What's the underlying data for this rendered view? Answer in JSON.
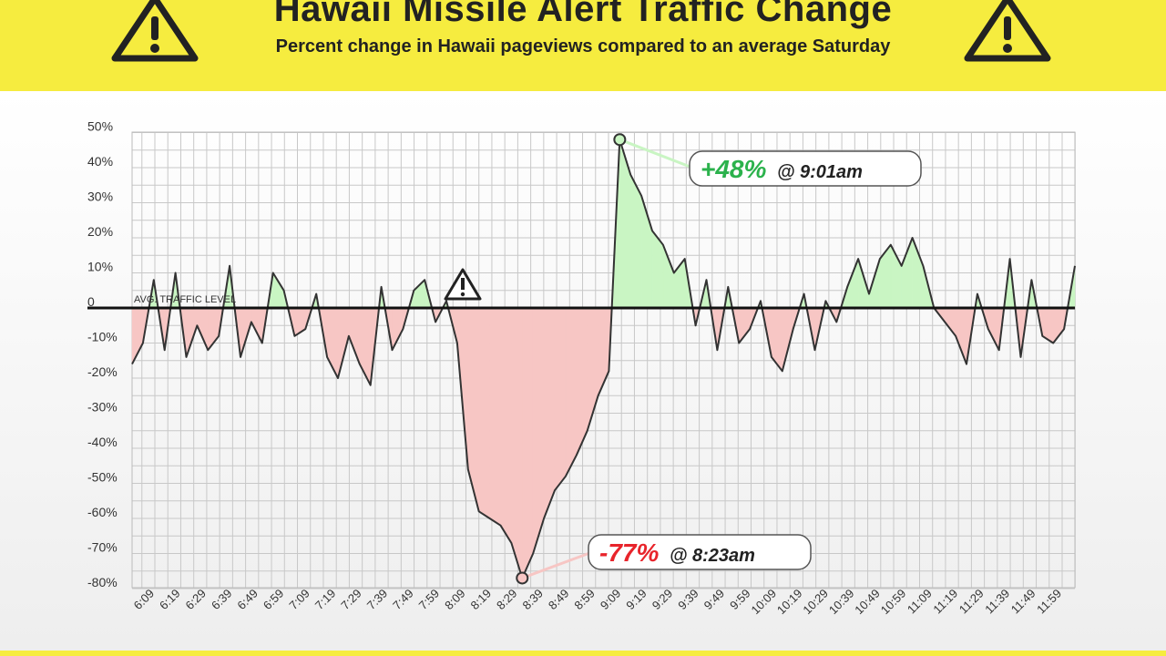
{
  "header": {
    "title": "Hawaii Missile Alert Traffic Change",
    "subtitle": "Percent change in Hawaii pageviews compared to an average Saturday"
  },
  "colors": {
    "header_bg": "#f6ec3f",
    "positive_fill": "#c9f5c3",
    "negative_fill": "#f7c6c4",
    "line": "#333333",
    "positive_text": "#2bb24c",
    "negative_text": "#e8242b"
  },
  "icons": [
    "warning-triangle-icon"
  ],
  "chart_data": {
    "type": "area",
    "title": "Hawaii Missile Alert Traffic Change",
    "subtitle": "Percent change in Hawaii pageviews compared to an average Saturday",
    "xlabel": "",
    "ylabel": "",
    "ylim": [
      -80,
      50
    ],
    "grid": true,
    "y_tick_labels": [
      "50%",
      "40%",
      "30%",
      "20%",
      "10%",
      "0",
      "-10%",
      "-20%",
      "-30%",
      "-40%",
      "-50%",
      "-60%",
      "-70%",
      "-80%"
    ],
    "y_tick_values": [
      50,
      40,
      30,
      20,
      10,
      0,
      -10,
      -20,
      -30,
      -40,
      -50,
      -60,
      -70,
      -80
    ],
    "x_tick_labels": [
      "6:09",
      "6:19",
      "6:29",
      "6:39",
      "6:49",
      "6:59",
      "7:09",
      "7:19",
      "7:29",
      "7:39",
      "7:49",
      "7:59",
      "8:09",
      "8:19",
      "8:29",
      "8:39",
      "8:49",
      "8:59",
      "9:09",
      "9:19",
      "9:29",
      "9:39",
      "9:49",
      "9:59",
      "10:09",
      "10:19",
      "10:29",
      "10:39",
      "10:49",
      "10:59",
      "11:09",
      "11:19",
      "11:29",
      "11:39",
      "11:49",
      "11:59"
    ],
    "baseline_label": "AVG. TRAFFIC LEVEL",
    "series": [
      {
        "values_by_10min": [
          -16,
          -10,
          8,
          -12,
          10,
          -14,
          -5,
          -12,
          -8,
          12,
          -14,
          -4,
          -10,
          10,
          5,
          -8,
          -6,
          4,
          -14,
          -20,
          -8,
          -16,
          -22,
          6,
          -12,
          -6,
          5,
          8,
          -4,
          2,
          -10,
          -46,
          -58,
          -60,
          -62,
          -67,
          -77,
          -70,
          -60,
          -52,
          -48,
          -42,
          -35,
          -25,
          -18,
          48,
          38,
          32,
          22,
          18,
          10,
          14,
          -5,
          8,
          -12,
          6,
          -10,
          -6,
          2,
          -14,
          -18,
          -6,
          4,
          -12,
          2,
          -4,
          6,
          14,
          4,
          14,
          18,
          12,
          20,
          12,
          0,
          -4,
          -8,
          -16,
          4,
          -6,
          -12,
          14,
          -14,
          8,
          -8,
          -10,
          -6,
          12
        ]
      }
    ]
  },
  "callouts": {
    "peak": {
      "value": "+48%",
      "time": "@ 9:01am",
      "data_value": 48
    },
    "trough": {
      "value": "-77%",
      "time": "@ 8:23am",
      "data_value": -77
    }
  }
}
